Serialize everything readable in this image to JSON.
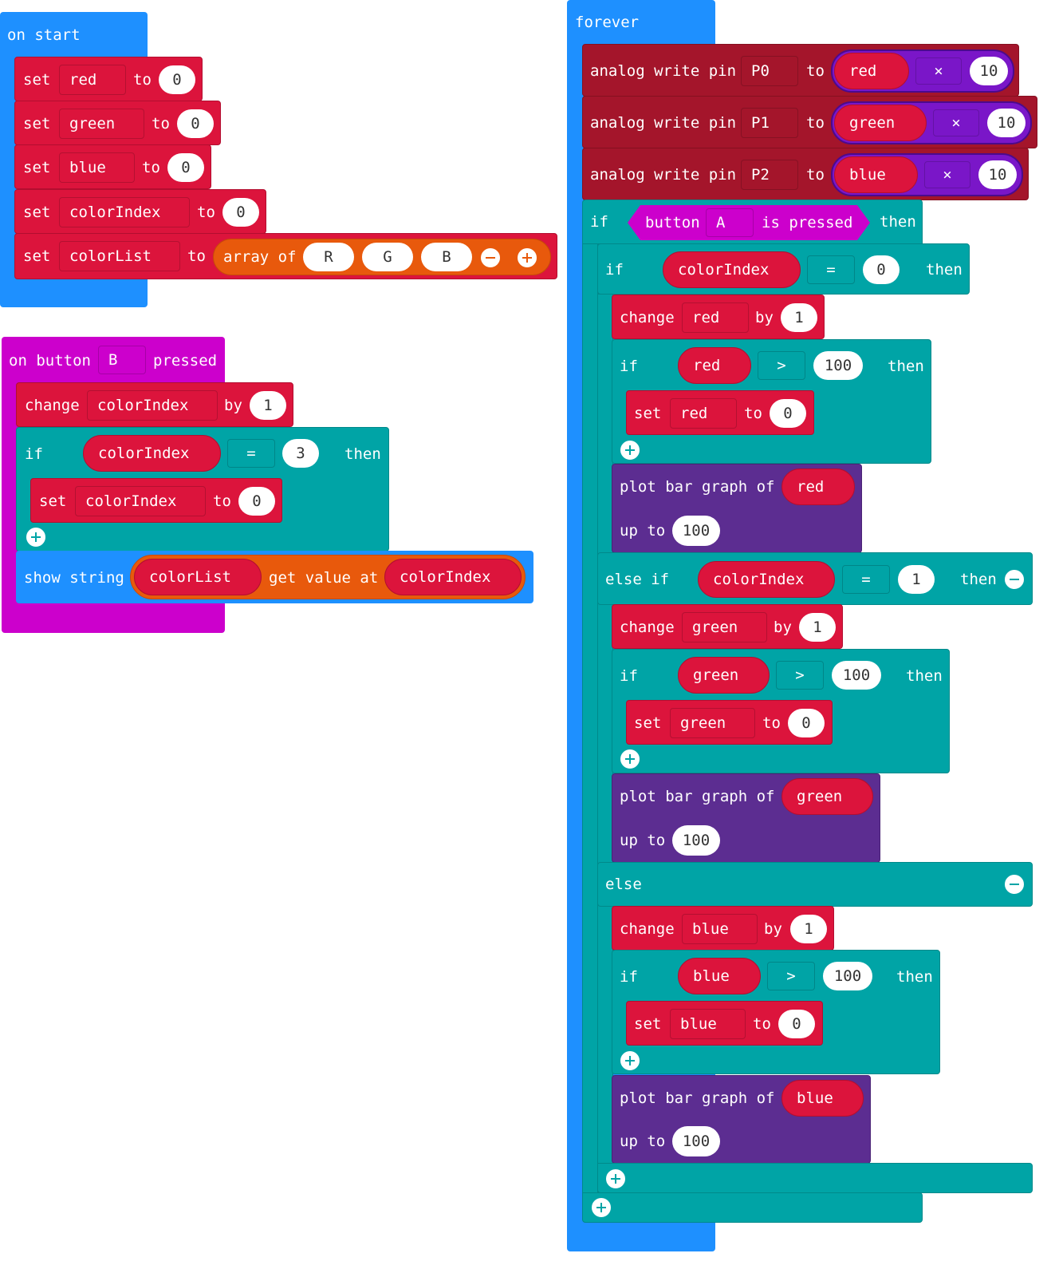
{
  "on_start": {
    "title": "on start",
    "set_kw": "set",
    "to_kw": "to",
    "rows": [
      {
        "var": "red",
        "value": "0"
      },
      {
        "var": "green",
        "value": "0"
      },
      {
        "var": "blue",
        "value": "0"
      },
      {
        "var": "colorIndex",
        "value": "0"
      }
    ],
    "list_row": {
      "var": "colorList",
      "array_label": "array of",
      "items": [
        "R",
        "G",
        "B"
      ]
    }
  },
  "on_button": {
    "title_prefix": "on button",
    "button": "B",
    "title_suffix": "pressed",
    "change_kw": "change",
    "change_var": "colorIndex",
    "by_kw": "by",
    "change_value": "1",
    "if_kw": "if",
    "cond_var": "colorIndex",
    "cond_op": "=",
    "cond_value": "3",
    "then_kw": "then",
    "set_kw": "set",
    "set_var": "colorIndex",
    "to_kw": "to",
    "set_value": "0",
    "show_label": "show string",
    "list_var": "colorList",
    "get_label": "get value at",
    "index_var": "colorIndex"
  },
  "forever": {
    "title": "forever",
    "analog": [
      {
        "label": "analog write pin",
        "pin": "P0",
        "to": "to",
        "var": "red",
        "op": "×",
        "num": "10"
      },
      {
        "label": "analog write pin",
        "pin": "P1",
        "to": "to",
        "var": "green",
        "op": "×",
        "num": "10"
      },
      {
        "label": "analog write pin",
        "pin": "P2",
        "to": "to",
        "var": "blue",
        "op": "×",
        "num": "10"
      }
    ],
    "if_kw": "if",
    "then_kw": "then",
    "button_label": "button",
    "button": "A",
    "pressed_label": "is pressed",
    "inner_cond_var": "colorIndex",
    "eq": "=",
    "cond0": "0",
    "cond1": "1",
    "elseif_kw": "else if",
    "else_kw": "else",
    "change_kw": "change",
    "by_kw": "by",
    "set_kw": "set",
    "to_kw": "to",
    "gt": ">",
    "plot_label": "plot bar graph of",
    "upto_label": "up to",
    "branches": [
      {
        "var": "red",
        "by": "1",
        "limit": "100",
        "reset": "0",
        "max": "100"
      },
      {
        "var": "green",
        "by": "1",
        "limit": "100",
        "reset": "0",
        "max": "100"
      },
      {
        "var": "blue",
        "by": "1",
        "limit": "100",
        "reset": "0",
        "max": "100"
      }
    ]
  }
}
